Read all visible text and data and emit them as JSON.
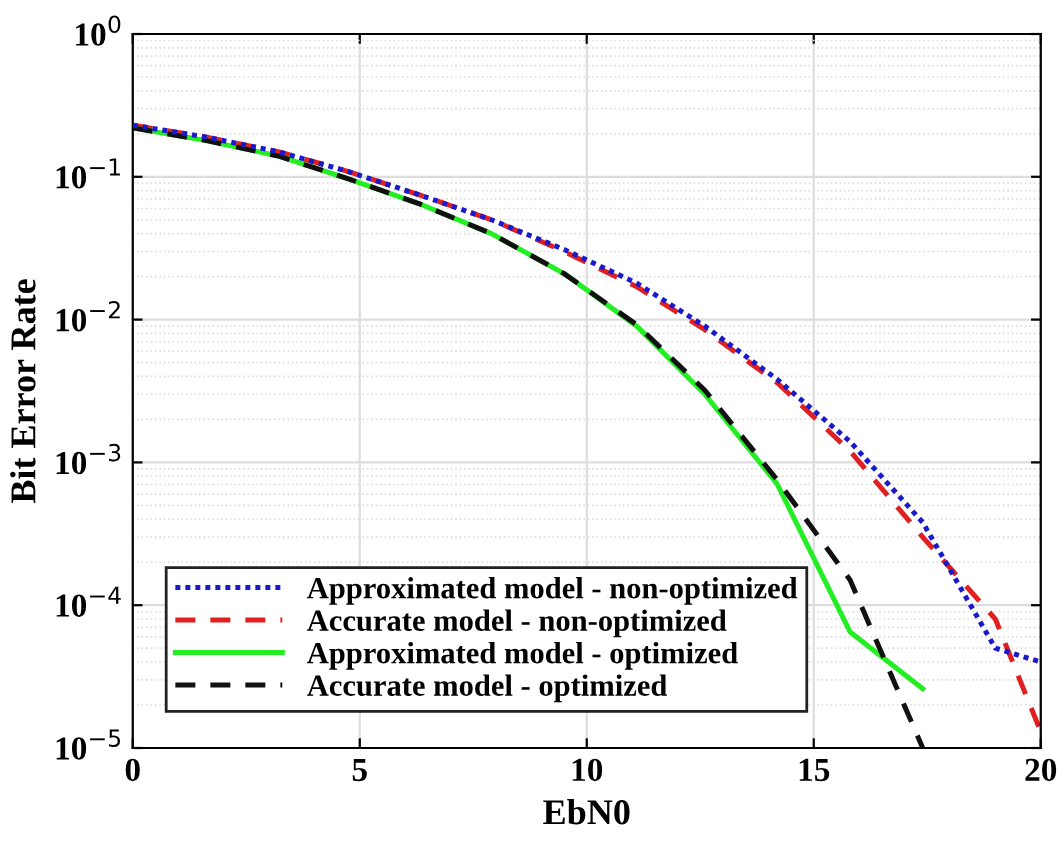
{
  "chart_data": {
    "type": "line",
    "xlabel": "EbN0",
    "ylabel": "Bit Error Rate",
    "log": "y",
    "xlim": [
      0,
      20
    ],
    "xticks": [
      0,
      5,
      10,
      15,
      20
    ],
    "ylim": [
      1e-05,
      1
    ],
    "yticks": [
      {
        "value": 1e-05,
        "label": "10$^{−5}$"
      },
      {
        "value": 0.0001,
        "label": "10$^{−4}$"
      },
      {
        "value": 0.001,
        "label": "10$^{−3}$"
      },
      {
        "value": 0.01,
        "label": "10$^{−2}$"
      },
      {
        "value": 0.1,
        "label": "10$^{−1}$"
      },
      {
        "value": 1,
        "label": "10$^{0}$"
      }
    ],
    "grid": true,
    "legend": "bottom left",
    "marker": "none",
    "series": [
      {
        "name": "Approximated model - non-optimized",
        "color": "#1a1acc",
        "line_style": "dotted",
        "x": [
          0,
          1.6,
          3.2,
          4.7,
          6.3,
          7.9,
          9.5,
          11.1,
          12.6,
          14.2,
          15.8,
          17.4,
          19.0,
          20
        ],
        "values": [
          0.23,
          0.19,
          0.15,
          0.11,
          0.075,
          0.05,
          0.031,
          0.018,
          0.009,
          0.0038,
          0.0014,
          0.00038,
          5e-05,
          4e-05
        ]
      },
      {
        "name": "Accurate model - non-optimized",
        "color": "#e02020",
        "line_style": "dashed",
        "x": [
          0,
          1.6,
          3.2,
          4.7,
          6.3,
          7.9,
          9.5,
          11.1,
          12.6,
          14.2,
          15.8,
          17.4,
          19.0,
          20
        ],
        "values": [
          0.23,
          0.19,
          0.15,
          0.11,
          0.075,
          0.05,
          0.03,
          0.017,
          0.0085,
          0.0036,
          0.0012,
          0.0003,
          8e-05,
          1.3e-05
        ]
      },
      {
        "name": "Approximated model - optimized",
        "color": "#22ee22",
        "line_style": "solid",
        "x": [
          0,
          1.6,
          3.2,
          4.7,
          6.3,
          7.9,
          9.5,
          11.1,
          12.6,
          14.2,
          15.8,
          17.4
        ],
        "values": [
          0.22,
          0.18,
          0.14,
          0.098,
          0.065,
          0.04,
          0.021,
          0.009,
          0.003,
          0.0007,
          6.5e-05,
          2.6e-05
        ]
      },
      {
        "name": "Accurate model - optimized",
        "color": "#111111",
        "line_style": "dashed",
        "x": [
          0,
          1.6,
          3.2,
          4.7,
          6.3,
          7.9,
          9.5,
          11.1,
          12.6,
          14.2,
          15.8,
          17.4
        ],
        "values": [
          0.22,
          0.18,
          0.14,
          0.098,
          0.065,
          0.04,
          0.021,
          0.0092,
          0.0032,
          0.00075,
          0.00015,
          1e-05
        ]
      }
    ]
  }
}
